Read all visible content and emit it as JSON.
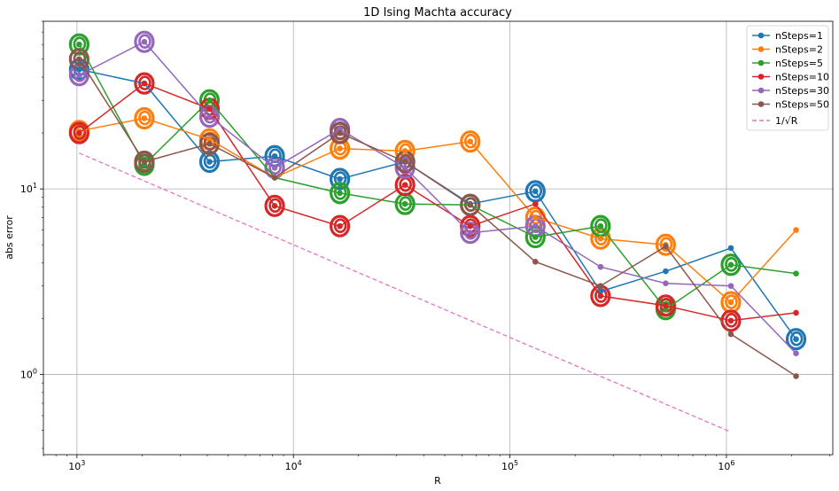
{
  "chart_data": {
    "type": "line",
    "title": "1D Ising Machta accuracy",
    "xlabel": "R",
    "ylabel": "abs error",
    "xscale": "log",
    "yscale": "log",
    "xlim": [
      700,
      3100000
    ],
    "ylim": [
      0.37,
      80
    ],
    "xticks": [
      {
        "value": 1000,
        "base": "10",
        "exp": "3"
      },
      {
        "value": 10000,
        "base": "10",
        "exp": "4"
      },
      {
        "value": 100000,
        "base": "10",
        "exp": "5"
      },
      {
        "value": 1000000,
        "base": "10",
        "exp": "6"
      }
    ],
    "yticks": [
      {
        "value": 1,
        "base": "10",
        "exp": "0"
      },
      {
        "value": 10,
        "base": "10",
        "exp": "1"
      }
    ],
    "grid": true,
    "legend_position": "top-right",
    "x": [
      1024,
      2048,
      4096,
      8192,
      16384,
      32768,
      65536,
      131072,
      262144,
      524288,
      1048576,
      2097152
    ],
    "series": [
      {
        "name": "nSteps=1",
        "color": "#1f77b4",
        "values": [
          44,
          37,
          14,
          15,
          11.3,
          14,
          8.3,
          9.7,
          2.8,
          3.6,
          4.8,
          1.55
        ],
        "circled": [
          0,
          2,
          3,
          4,
          7,
          11
        ]
      },
      {
        "name": "nSteps=2",
        "color": "#ff7f0e",
        "values": [
          20.5,
          24,
          18.5,
          11.5,
          16.5,
          16,
          18,
          7,
          5.4,
          5,
          2.45,
          6
        ],
        "circled": [
          0,
          1,
          2,
          4,
          5,
          6,
          7,
          8,
          9,
          10
        ]
      },
      {
        "name": "nSteps=5",
        "color": "#2ca02c",
        "values": [
          60,
          13.5,
          30,
          11.5,
          9.5,
          8.3,
          8.2,
          5.5,
          6.3,
          2.25,
          3.9,
          3.5
        ],
        "circled": [
          0,
          1,
          2,
          4,
          5,
          6,
          7,
          8,
          9,
          10
        ]
      },
      {
        "name": "nSteps=10",
        "color": "#d62728",
        "values": [
          20,
          37,
          27,
          8.1,
          6.3,
          10.5,
          6.3,
          8.3,
          2.65,
          2.35,
          1.95,
          2.15
        ],
        "circled": [
          0,
          1,
          2,
          3,
          4,
          5,
          6,
          8,
          9,
          10
        ]
      },
      {
        "name": "nSteps=30",
        "color": "#9467bd",
        "values": [
          41,
          62,
          24.5,
          13,
          21,
          13,
          5.8,
          6.3,
          3.8,
          3.1,
          3,
          1.3
        ],
        "circled": [
          0,
          1,
          2,
          3,
          4,
          5,
          6,
          7
        ]
      },
      {
        "name": "nSteps=50",
        "color": "#8c564b",
        "values": [
          50,
          14,
          17.5,
          11.5,
          20,
          14,
          8.2,
          4.05,
          3,
          4.9,
          1.65,
          0.98
        ],
        "circled": [
          0,
          1,
          2,
          4,
          5,
          6
        ]
      },
      {
        "name": "1/√R",
        "color": "#e377c2",
        "dashed": true,
        "x": [
          1024,
          1048576
        ],
        "values": [
          15.6,
          0.49
        ]
      }
    ],
    "legend_entries": [
      {
        "text": "nSteps=1"
      },
      {
        "text": "nSteps=2"
      },
      {
        "text": "nSteps=5"
      },
      {
        "text": "nSteps=10"
      },
      {
        "text": "nSteps=30"
      },
      {
        "text": "nSteps=50"
      },
      {
        "text": "1/√R"
      }
    ]
  }
}
